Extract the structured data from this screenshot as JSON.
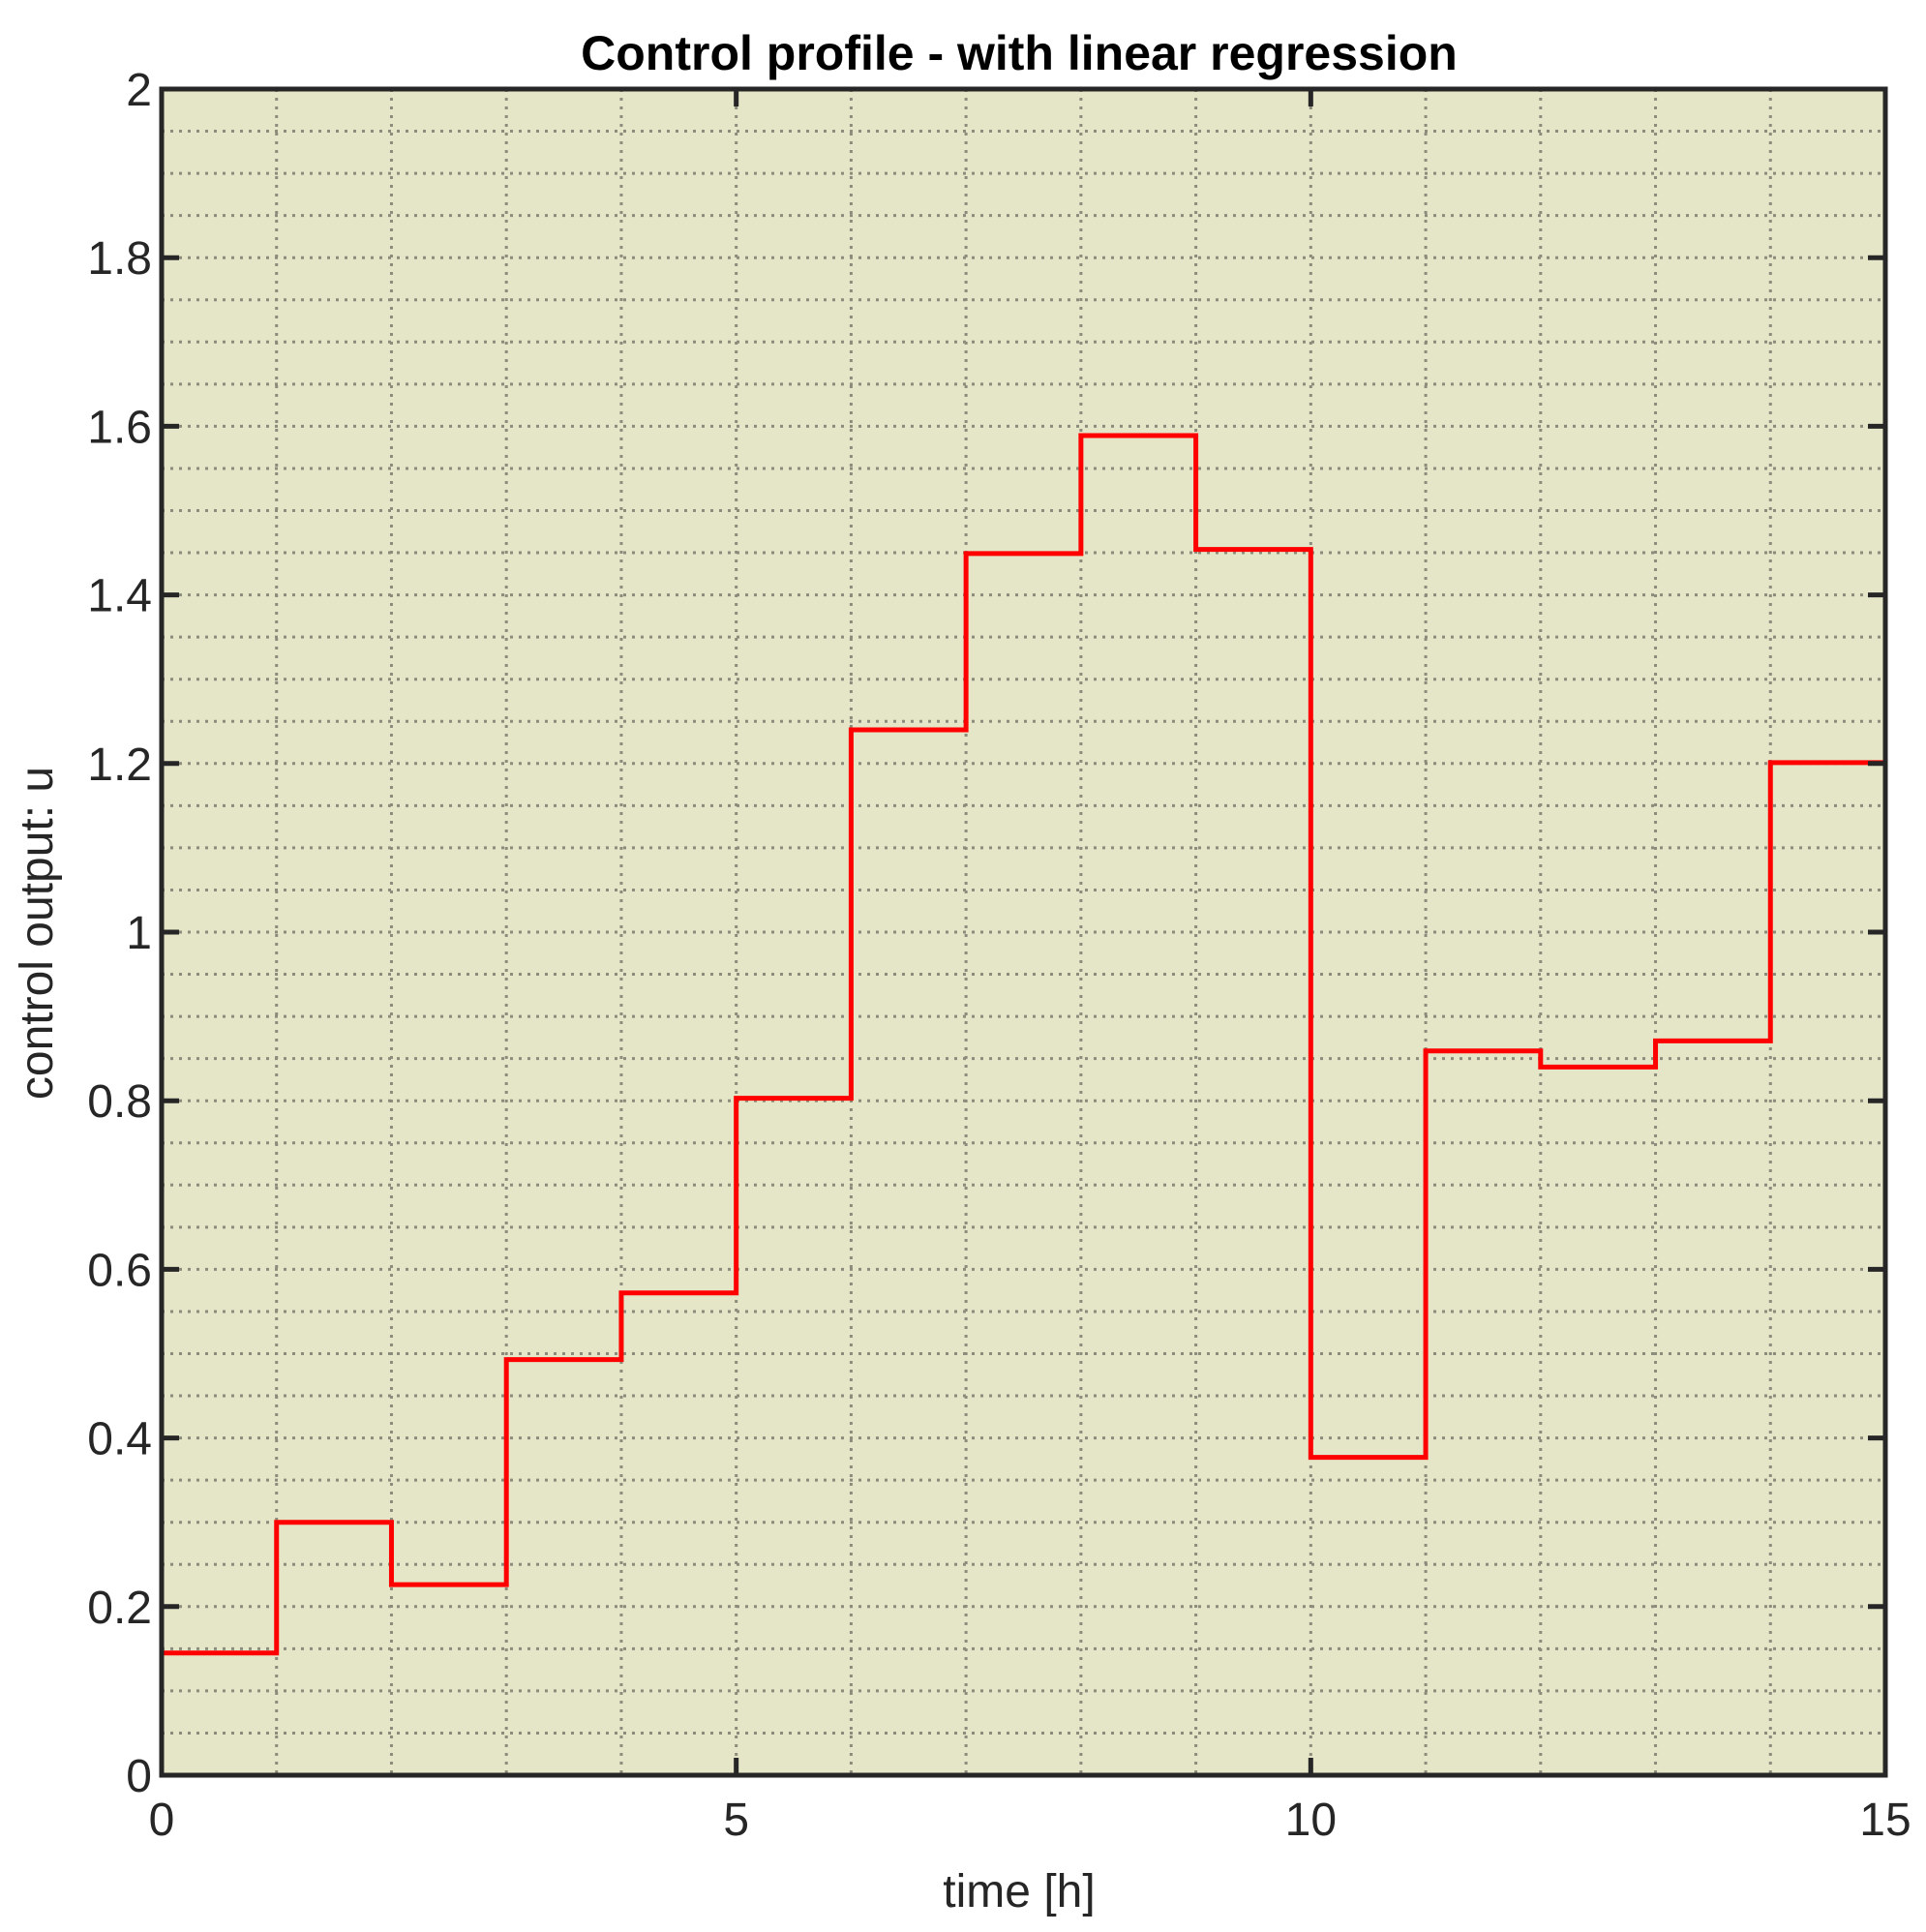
{
  "chart_data": {
    "type": "line",
    "step": "post",
    "title": "Control profile - with linear regression",
    "xlabel": "time [h]",
    "ylabel": "control output: u",
    "xlim": [
      0,
      15
    ],
    "ylim": [
      0,
      2
    ],
    "xticks": [
      0,
      5,
      10,
      15
    ],
    "yticks": [
      0,
      0.2,
      0.4,
      0.6,
      0.8,
      1,
      1.2,
      1.4,
      1.6,
      1.8,
      2
    ],
    "xtick_labels": [
      "0",
      "5",
      "10",
      "15"
    ],
    "ytick_labels": [
      "0",
      "0.2",
      "0.4",
      "0.6",
      "0.8",
      "1",
      "1.2",
      "1.4",
      "1.6",
      "1.8",
      "2"
    ],
    "x_minor_step": 1,
    "y_minor_step": 0.05,
    "grid": true,
    "minor_grid": true,
    "background_color": "#e5e5c8",
    "series": [
      {
        "color": "#ff0000",
        "x": [
          0,
          1,
          2,
          3,
          4,
          5,
          6,
          7,
          8,
          9,
          10,
          11,
          12,
          13,
          14,
          15
        ],
        "values": [
          0.145,
          0.3,
          0.226,
          0.493,
          0.572,
          0.803,
          1.24,
          1.449,
          1.589,
          1.454,
          0.377,
          0.859,
          0.84,
          0.871,
          1.201,
          1.201
        ]
      }
    ]
  }
}
